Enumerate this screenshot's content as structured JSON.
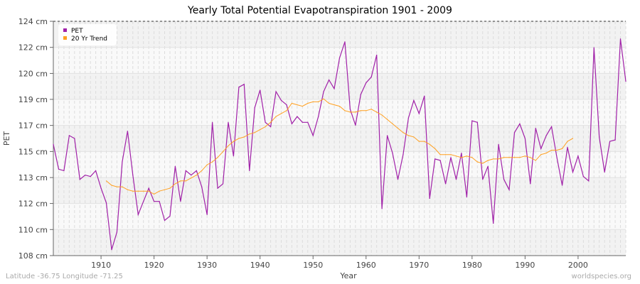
{
  "chart_data": {
    "type": "line",
    "title": "Yearly Total Potential Evapotranspiration 1901 - 2009",
    "xlabel": "Year",
    "ylabel": "PET",
    "xlim": [
      1901,
      2009
    ],
    "ylim": [
      108,
      124
    ],
    "x_ticks": [
      1910,
      1920,
      1930,
      1940,
      1950,
      1960,
      1970,
      1980,
      1990,
      2000
    ],
    "y_ticks": [
      108,
      109.78,
      111.56,
      113.33,
      115.11,
      116.89,
      118.67,
      120.44,
      122.22,
      124
    ],
    "y_tick_labels": [
      "108 cm",
      "110 cm",
      "112 cm",
      "113 cm",
      "115 cm",
      "117 cm",
      "119 cm",
      "120 cm",
      "122 cm",
      "124 cm"
    ],
    "grid": true,
    "legend_position": "top-left",
    "series": [
      {
        "name": "PET",
        "color": "#a020a8",
        "start_year": 1901,
        "values": [
          115.6,
          113.9,
          113.8,
          116.2,
          116.0,
          113.2,
          113.5,
          113.4,
          113.8,
          112.6,
          111.6,
          108.4,
          109.6,
          114.4,
          116.5,
          113.5,
          110.8,
          111.7,
          112.6,
          111.7,
          111.7,
          110.4,
          110.7,
          114.1,
          111.7,
          113.8,
          113.5,
          113.8,
          112.7,
          110.8,
          117.1,
          112.6,
          112.9,
          117.1,
          114.8,
          119.5,
          119.7,
          113.8,
          118.1,
          119.3,
          117.1,
          116.8,
          119.2,
          118.6,
          118.3,
          117.0,
          117.5,
          117.1,
          117.1,
          116.2,
          117.5,
          119.2,
          120.0,
          119.4,
          121.5,
          122.6,
          118.0,
          116.9,
          119.0,
          119.8,
          120.2,
          121.7,
          111.2,
          116.2,
          115.0,
          113.2,
          114.9,
          117.4,
          118.6,
          117.7,
          118.9,
          111.9,
          114.6,
          114.5,
          112.9,
          114.7,
          113.2,
          115.0,
          112.0,
          117.2,
          117.1,
          113.2,
          114.1,
          110.2,
          115.6,
          113.2,
          112.5,
          116.4,
          117.0,
          116.0,
          112.9,
          116.7,
          115.3,
          116.2,
          116.8,
          114.7,
          112.8,
          115.4,
          113.7,
          114.8,
          113.4,
          113.1,
          122.2,
          116.1,
          113.7,
          115.8,
          115.9,
          122.8,
          119.9
        ]
      },
      {
        "name": "20 Yr Trend",
        "color": "#ffa020",
        "start_year": 1911,
        "values": [
          113.1,
          112.8,
          112.7,
          112.7,
          112.5,
          112.4,
          112.4,
          112.4,
          112.4,
          112.2,
          112.4,
          112.5,
          112.6,
          112.9,
          113.1,
          113.1,
          113.3,
          113.5,
          113.8,
          114.2,
          114.4,
          114.7,
          115.1,
          115.5,
          115.8,
          116.0,
          116.1,
          116.3,
          116.4,
          116.6,
          116.8,
          117.1,
          117.5,
          117.7,
          117.9,
          118.4,
          118.3,
          118.2,
          118.4,
          118.5,
          118.5,
          118.7,
          118.4,
          118.3,
          118.2,
          117.9,
          117.8,
          117.8,
          117.9,
          117.9,
          118.0,
          117.8,
          117.6,
          117.3,
          117.0,
          116.7,
          116.4,
          116.2,
          116.1,
          115.8,
          115.8,
          115.6,
          115.3,
          114.9,
          114.9,
          114.9,
          114.8,
          114.7,
          114.8,
          114.7,
          114.4,
          114.3,
          114.5,
          114.6,
          114.6,
          114.7,
          114.7,
          114.7,
          114.7,
          114.8,
          114.7,
          114.5,
          114.9,
          115.0,
          115.2,
          115.2,
          115.3,
          115.8,
          116.0
        ]
      }
    ]
  },
  "footer": {
    "location": "Latitude -36.75 Longitude -71.25",
    "site": "worldspecies.org"
  }
}
